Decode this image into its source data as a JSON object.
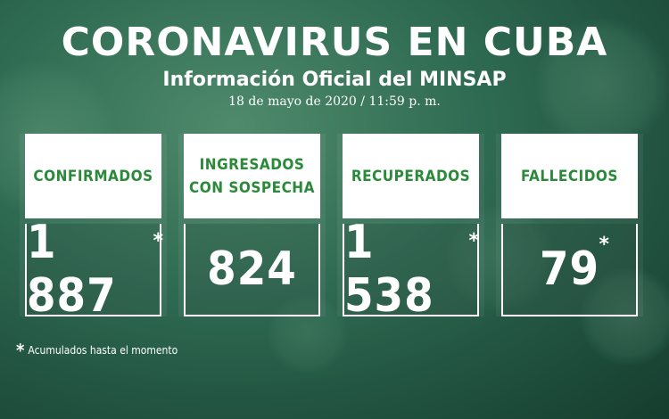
{
  "header": {
    "title": "CORONAVIRUS EN CUBA",
    "subtitle": "Información Oficial del MINSAP",
    "date": "18 de mayo de 2020 / 11:59 p. m."
  },
  "cards": [
    {
      "label": "CONFIRMADOS",
      "value": "1 887",
      "asterisk": "*"
    },
    {
      "label": "INGRESADOS CON SOSPECHA",
      "value": "824",
      "asterisk": ""
    },
    {
      "label": "RECUPERADOS",
      "value": "1 538",
      "asterisk": "*"
    },
    {
      "label": "FALLECIDOS",
      "value": "79",
      "asterisk": "*"
    }
  ],
  "footnote": {
    "symbol": "*",
    "text": "Acumulados hasta el momento"
  },
  "colors": {
    "label_green": "#2a8a3a",
    "background_green": "#2f6b52",
    "text_white": "#ffffff"
  }
}
